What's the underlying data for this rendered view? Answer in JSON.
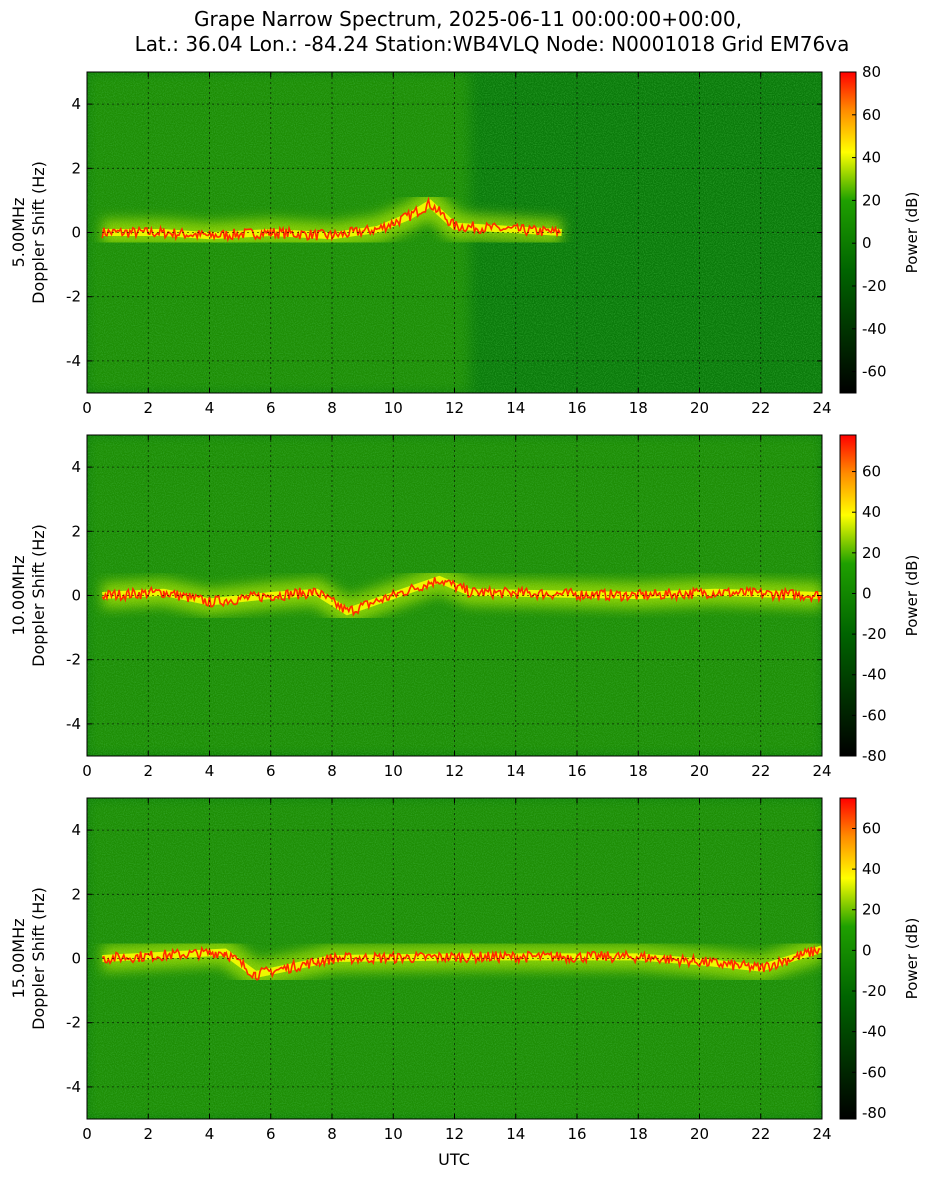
{
  "figure": {
    "title_line1": "Grape Narrow Spectrum, 2025-06-11 00:00:00+00:00,",
    "title_line2": "Lat.: 36.04 Lon.: -84.24 Station:WB4VLQ Node: N0001018 Grid EM76va",
    "shared_xlabel": "UTC"
  },
  "chart_data": [
    {
      "type": "heatmap",
      "title": "",
      "ylabel_line1": "5.00MHz",
      "ylabel_line2": "Doppler Shift (Hz)",
      "xlabel": "",
      "xlim": [
        0,
        24
      ],
      "ylim": [
        -5,
        5
      ],
      "xticks": [
        0,
        2,
        4,
        6,
        8,
        10,
        12,
        14,
        16,
        18,
        20,
        22,
        24
      ],
      "yticks": [
        -4,
        -2,
        0,
        2,
        4
      ],
      "grid": true,
      "colorbar": {
        "label": "Power (dB)",
        "range": [
          -70,
          80
        ],
        "ticks": [
          -60,
          -40,
          -20,
          0,
          20,
          40,
          60,
          80
        ]
      },
      "active_window_utc": [
        0,
        12.5
      ],
      "carrier_track": [
        {
          "t": 0.5,
          "f": 0.0
        },
        {
          "t": 2.5,
          "f": 0.0
        },
        {
          "t": 4.0,
          "f": -0.1
        },
        {
          "t": 6.0,
          "f": 0.0
        },
        {
          "t": 8.0,
          "f": -0.1
        },
        {
          "t": 9.5,
          "f": 0.1
        },
        {
          "t": 10.5,
          "f": 0.5
        },
        {
          "t": 11.2,
          "f": 0.9
        },
        {
          "t": 12.0,
          "f": 0.2
        },
        {
          "t": 15.5,
          "f": 0.0
        }
      ]
    },
    {
      "type": "heatmap",
      "title": "",
      "ylabel_line1": "10.00MHz",
      "ylabel_line2": "Doppler Shift (Hz)",
      "xlabel": "",
      "xlim": [
        0,
        24
      ],
      "ylim": [
        -5,
        5
      ],
      "xticks": [
        0,
        2,
        4,
        6,
        8,
        10,
        12,
        14,
        16,
        18,
        20,
        22,
        24
      ],
      "yticks": [
        -4,
        -2,
        0,
        2,
        4
      ],
      "grid": true,
      "colorbar": {
        "label": "Power (dB)",
        "range": [
          -80,
          78
        ],
        "ticks": [
          -80,
          -60,
          -40,
          -20,
          0,
          20,
          40,
          60
        ]
      },
      "active_window_utc": [
        0,
        24
      ],
      "carrier_track": [
        {
          "t": 0.5,
          "f": 0.0
        },
        {
          "t": 2.5,
          "f": 0.1
        },
        {
          "t": 4.0,
          "f": -0.2
        },
        {
          "t": 6.0,
          "f": 0.0
        },
        {
          "t": 7.5,
          "f": 0.1
        },
        {
          "t": 8.5,
          "f": -0.5
        },
        {
          "t": 11.5,
          "f": 0.5
        },
        {
          "t": 12.5,
          "f": 0.1
        },
        {
          "t": 18.0,
          "f": 0.0
        },
        {
          "t": 20.5,
          "f": 0.1
        },
        {
          "t": 24.0,
          "f": 0.0
        }
      ]
    },
    {
      "type": "heatmap",
      "title": "",
      "ylabel_line1": "15.00MHz",
      "ylabel_line2": "Doppler Shift (Hz)",
      "xlabel": "UTC",
      "xlim": [
        0,
        24
      ],
      "ylim": [
        -5,
        5
      ],
      "xticks": [
        0,
        2,
        4,
        6,
        8,
        10,
        12,
        14,
        16,
        18,
        20,
        22,
        24
      ],
      "yticks": [
        -4,
        -2,
        0,
        2,
        4
      ],
      "grid": true,
      "colorbar": {
        "label": "Power (dB)",
        "range": [
          -83,
          75
        ],
        "ticks": [
          -80,
          -60,
          -40,
          -20,
          0,
          20,
          40,
          60
        ]
      },
      "active_window_utc": [
        0,
        24
      ],
      "carrier_track": [
        {
          "t": 0.5,
          "f": 0.0
        },
        {
          "t": 2.5,
          "f": 0.1
        },
        {
          "t": 4.5,
          "f": 0.2
        },
        {
          "t": 5.5,
          "f": -0.5
        },
        {
          "t": 8.0,
          "f": 0.0
        },
        {
          "t": 12.5,
          "f": 0.05
        },
        {
          "t": 18.0,
          "f": 0.05
        },
        {
          "t": 20.0,
          "f": -0.1
        },
        {
          "t": 22.0,
          "f": -0.3
        },
        {
          "t": 24.0,
          "f": 0.3
        }
      ]
    }
  ],
  "colors": {
    "background_green": "#0a7a0a",
    "colormap": [
      "#000000",
      "#006400",
      "#22a000",
      "#ffff00",
      "#ff8800",
      "#ff0000"
    ]
  }
}
